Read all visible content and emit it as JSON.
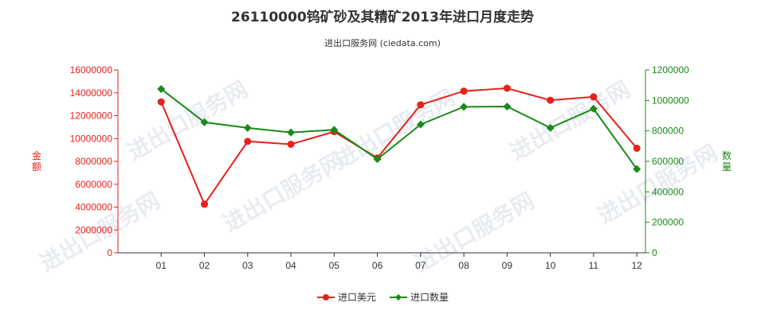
{
  "chart_data": {
    "type": "line",
    "title": "26110000钨矿砂及其精矿2013年进口月度走势",
    "subtitle": "进出口服务网 (ciedata.com)",
    "categories": [
      "01",
      "02",
      "03",
      "04",
      "05",
      "06",
      "07",
      "08",
      "09",
      "10",
      "11",
      "12"
    ],
    "left_axis": {
      "label": "金额",
      "ylim": [
        0,
        16000000
      ],
      "ticks": [
        0,
        2000000,
        4000000,
        6000000,
        8000000,
        10000000,
        12000000,
        14000000,
        16000000
      ],
      "color": "#e8211a"
    },
    "right_axis": {
      "label": "数量",
      "ylim": [
        0,
        1200000
      ],
      "ticks": [
        0,
        200000,
        400000,
        600000,
        800000,
        1000000,
        1200000
      ],
      "color": "#1a8a1a"
    },
    "series": [
      {
        "name": "进口美元",
        "axis": "left",
        "color": "#e8211a",
        "marker": "circle",
        "values": [
          13200000,
          4250000,
          9750000,
          9500000,
          10600000,
          8300000,
          12950000,
          14150000,
          14400000,
          13350000,
          13650000,
          9150000
        ]
      },
      {
        "name": "进口数量",
        "axis": "right",
        "color": "#1a8a1a",
        "marker": "diamond",
        "values": [
          1075000,
          857000,
          820000,
          790000,
          807000,
          615000,
          842000,
          958000,
          960000,
          820000,
          945000,
          550000
        ]
      }
    ],
    "grid": false,
    "legend": "bottom-center"
  },
  "watermark_text": "进出口服务网"
}
